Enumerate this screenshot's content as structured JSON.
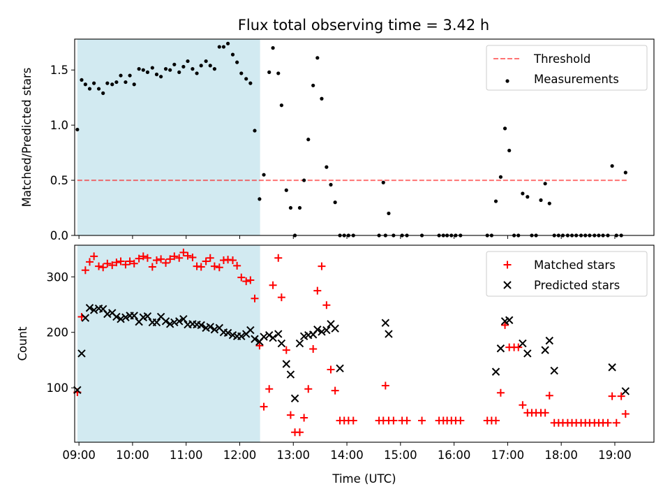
{
  "title": "Flux total observing time = 3.42 h",
  "colors": {
    "highlight": "#add8e6",
    "threshold": "#ff0000",
    "measurements": "#000000",
    "matched": "#ff0000",
    "predicted": "#000000"
  },
  "chart_data": [
    {
      "type": "scatter",
      "ylabel": "Matched/Predicted stars",
      "xlabel": "",
      "xlim": [
        8.92,
        19.73
      ],
      "ylim": [
        0.0,
        1.78
      ],
      "yticks": [
        "0.0",
        "0.5",
        "1.0",
        "1.5"
      ],
      "ytick_values": [
        0.0,
        0.5,
        1.0,
        1.5
      ],
      "highlight_span": [
        8.97,
        12.38
      ],
      "threshold": {
        "name": "Threshold",
        "y": 0.5,
        "x_range": [
          8.97,
          19.22
        ]
      },
      "legend": {
        "position": "top-right",
        "entries": [
          "Threshold",
          "Measurements"
        ]
      },
      "series": [
        {
          "name": "Measurements",
          "marker": "dot",
          "x": [
            8.97,
            9.05,
            9.12,
            9.2,
            9.28,
            9.37,
            9.45,
            9.53,
            9.62,
            9.7,
            9.78,
            9.87,
            9.95,
            10.03,
            10.12,
            10.2,
            10.28,
            10.37,
            10.45,
            10.53,
            10.62,
            10.7,
            10.78,
            10.87,
            10.95,
            11.03,
            11.12,
            11.2,
            11.28,
            11.37,
            11.45,
            11.53,
            11.62,
            11.7,
            11.78,
            11.87,
            11.95,
            12.03,
            12.12,
            12.2,
            12.28,
            12.37,
            12.45,
            12.55,
            12.62,
            12.72,
            12.78,
            12.87,
            12.95,
            13.03,
            13.12,
            13.2,
            13.28,
            13.37,
            13.45,
            13.53,
            13.62,
            13.7,
            13.78,
            13.87,
            13.95,
            14.03,
            14.12,
            14.6,
            14.68,
            14.72,
            14.78,
            14.87,
            15.03,
            15.12,
            15.4,
            15.72,
            15.8,
            15.87,
            15.95,
            16.03,
            16.12,
            16.62,
            16.7,
            16.78,
            16.87,
            16.95,
            17.03,
            17.12,
            17.2,
            17.28,
            17.37,
            17.45,
            17.53,
            17.62,
            17.7,
            17.78,
            17.87,
            17.95,
            18.03,
            18.12,
            18.2,
            18.28,
            18.37,
            18.45,
            18.53,
            18.62,
            18.7,
            18.78,
            18.87,
            18.95,
            19.03,
            19.12,
            19.2
          ],
          "y": [
            0.96,
            1.41,
            1.37,
            1.33,
            1.38,
            1.33,
            1.29,
            1.38,
            1.37,
            1.39,
            1.45,
            1.39,
            1.45,
            1.37,
            1.51,
            1.5,
            1.48,
            1.52,
            1.46,
            1.44,
            1.51,
            1.5,
            1.55,
            1.48,
            1.53,
            1.58,
            1.51,
            1.47,
            1.54,
            1.58,
            1.54,
            1.51,
            1.71,
            1.71,
            1.74,
            1.64,
            1.57,
            1.47,
            1.42,
            1.38,
            0.95,
            0.33,
            0.55,
            1.48,
            1.7,
            1.47,
            1.18,
            0.41,
            0.25,
            0.0,
            0.25,
            0.5,
            0.87,
            1.36,
            1.61,
            1.24,
            0.62,
            0.46,
            0.3,
            0.0,
            0.0,
            0.0,
            0.0,
            0.0,
            0.48,
            0.0,
            0.2,
            0.0,
            0.0,
            0.0,
            0.0,
            0.0,
            0.0,
            0.0,
            0.0,
            0.0,
            0.0,
            0.0,
            0.0,
            0.31,
            0.53,
            0.97,
            0.77,
            0.0,
            0.0,
            0.38,
            0.35,
            0.0,
            0.0,
            0.32,
            0.47,
            0.29,
            0.0,
            0.0,
            0.0,
            0.0,
            0.0,
            0.0,
            0.0,
            0.0,
            0.0,
            0.0,
            0.0,
            0.0,
            0.0,
            0.63,
            0.0,
            0.0,
            0.57
          ]
        }
      ]
    },
    {
      "type": "scatter",
      "ylabel": "Count",
      "xlabel": "Time (UTC)",
      "xlim": [
        8.92,
        19.73
      ],
      "ylim": [
        2,
        357
      ],
      "yticks": [
        "100",
        "200",
        "300"
      ],
      "ytick_values": [
        100,
        200,
        300
      ],
      "xticks": [
        "09:00",
        "10:00",
        "11:00",
        "12:00",
        "13:00",
        "14:00",
        "15:00",
        "16:00",
        "17:00",
        "18:00",
        "19:00"
      ],
      "xtick_values": [
        9,
        10,
        11,
        12,
        13,
        14,
        15,
        16,
        17,
        18,
        19
      ],
      "highlight_span": [
        8.97,
        12.38
      ],
      "legend": {
        "position": "top-right",
        "entries": [
          "Matched stars",
          "Predicted stars"
        ]
      },
      "series": [
        {
          "name": "Matched stars",
          "marker": "plus",
          "x": [
            8.97,
            9.05,
            9.12,
            9.2,
            9.28,
            9.37,
            9.45,
            9.53,
            9.62,
            9.7,
            9.78,
            9.87,
            9.95,
            10.03,
            10.12,
            10.2,
            10.28,
            10.37,
            10.45,
            10.53,
            10.62,
            10.7,
            10.78,
            10.87,
            10.95,
            11.03,
            11.12,
            11.2,
            11.28,
            11.37,
            11.45,
            11.53,
            11.62,
            11.7,
            11.78,
            11.87,
            11.95,
            12.03,
            12.12,
            12.2,
            12.28,
            12.37,
            12.45,
            12.55,
            12.62,
            12.72,
            12.78,
            12.87,
            12.95,
            13.03,
            13.12,
            13.2,
            13.28,
            13.37,
            13.45,
            13.53,
            13.62,
            13.7,
            13.78,
            13.87,
            13.95,
            14.03,
            14.12,
            14.6,
            14.68,
            14.72,
            14.78,
            14.87,
            15.03,
            15.12,
            15.4,
            15.72,
            15.8,
            15.87,
            15.95,
            16.03,
            16.12,
            16.62,
            16.7,
            16.78,
            16.87,
            16.95,
            17.03,
            17.12,
            17.2,
            17.28,
            17.37,
            17.45,
            17.53,
            17.62,
            17.7,
            17.78,
            17.87,
            17.95,
            18.03,
            18.12,
            18.2,
            18.28,
            18.37,
            18.45,
            18.53,
            18.62,
            18.7,
            18.78,
            18.87,
            18.95,
            19.03,
            19.12,
            19.2
          ],
          "y": [
            92,
            228,
            312,
            327,
            337,
            319,
            317,
            324,
            321,
            326,
            328,
            322,
            328,
            324,
            333,
            337,
            334,
            318,
            330,
            332,
            325,
            332,
            337,
            334,
            344,
            338,
            335,
            319,
            318,
            328,
            334,
            319,
            317,
            330,
            331,
            330,
            320,
            299,
            292,
            294,
            261,
            176,
            66,
            98,
            285,
            334,
            263,
            168,
            51,
            20,
            20,
            46,
            98,
            170,
            275,
            319,
            249,
            133,
            95,
            41,
            41,
            41,
            41,
            41,
            41,
            104,
            41,
            41,
            41,
            41,
            41,
            41,
            41,
            41,
            41,
            41,
            41,
            41,
            41,
            41,
            91,
            213,
            173,
            173,
            173,
            69,
            55,
            55,
            55,
            55,
            55,
            86,
            37,
            37,
            37,
            37,
            37,
            37,
            37,
            37,
            37,
            37,
            37,
            37,
            37,
            85,
            37,
            85,
            53
          ]
        },
        {
          "name": "Predicted stars",
          "marker": "x",
          "x": [
            8.97,
            9.05,
            9.12,
            9.2,
            9.28,
            9.37,
            9.45,
            9.53,
            9.62,
            9.7,
            9.78,
            9.87,
            9.95,
            10.03,
            10.12,
            10.2,
            10.28,
            10.37,
            10.45,
            10.53,
            10.62,
            10.7,
            10.78,
            10.87,
            10.95,
            11.03,
            11.12,
            11.2,
            11.28,
            11.37,
            11.45,
            11.53,
            11.62,
            11.7,
            11.78,
            11.87,
            11.95,
            12.03,
            12.12,
            12.2,
            12.28,
            12.37,
            12.45,
            12.55,
            12.62,
            12.72,
            12.78,
            12.87,
            12.95,
            13.03,
            13.12,
            13.2,
            13.28,
            13.37,
            13.45,
            13.53,
            13.62,
            13.7,
            13.78,
            13.87,
            14.72,
            14.78,
            16.78,
            16.87,
            16.95,
            17.03,
            17.28,
            17.37,
            17.7,
            17.78,
            17.87,
            18.95,
            19.2
          ],
          "y": [
            96,
            162,
            226,
            244,
            240,
            243,
            242,
            233,
            235,
            228,
            224,
            227,
            230,
            230,
            219,
            227,
            229,
            218,
            218,
            228,
            220,
            215,
            218,
            220,
            224,
            214,
            215,
            214,
            213,
            208,
            210,
            205,
            208,
            200,
            199,
            195,
            193,
            193,
            197,
            204,
            188,
            183,
            192,
            195,
            190,
            197,
            180,
            143,
            124,
            81,
            180,
            193,
            195,
            196,
            205,
            201,
            204,
            215,
            207,
            135,
            217,
            197,
            129,
            171,
            220,
            222,
            180,
            162,
            168,
            185,
            131,
            137,
            94
          ]
        }
      ]
    }
  ]
}
